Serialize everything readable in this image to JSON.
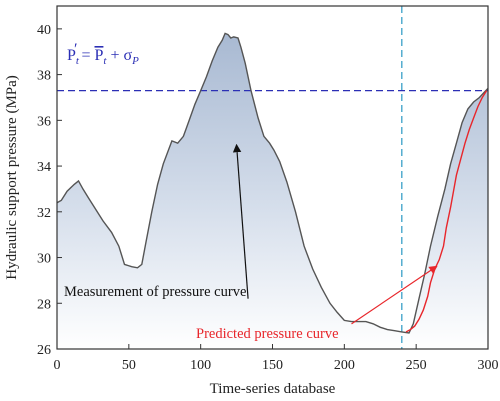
{
  "chart_data": {
    "type": "line",
    "xlabel": "Time-series database",
    "ylabel": "Hydraulic support pressure (MPa)",
    "xlim": [
      0,
      300
    ],
    "ylim": [
      26,
      41
    ],
    "xticks": [
      0,
      50,
      100,
      150,
      200,
      250,
      300
    ],
    "yticks": [
      26,
      28,
      30,
      32,
      34,
      36,
      38,
      40
    ],
    "grid": false,
    "series": [
      {
        "name": "Measurement of pressure curve",
        "color": "#555555",
        "fill": "gradient-blue",
        "points": [
          [
            0,
            32.4
          ],
          [
            3,
            32.5
          ],
          [
            7,
            32.9
          ],
          [
            12,
            33.2
          ],
          [
            15,
            33.35
          ],
          [
            18,
            33.0
          ],
          [
            22,
            32.6
          ],
          [
            27,
            32.1
          ],
          [
            32,
            31.6
          ],
          [
            38,
            31.1
          ],
          [
            43,
            30.5
          ],
          [
            47,
            29.7
          ],
          [
            52,
            29.6
          ],
          [
            56,
            29.55
          ],
          [
            59,
            29.7
          ],
          [
            62,
            30.7
          ],
          [
            66,
            32.0
          ],
          [
            70,
            33.2
          ],
          [
            74,
            34.1
          ],
          [
            80,
            35.1
          ],
          [
            84,
            35.0
          ],
          [
            88,
            35.3
          ],
          [
            92,
            36.0
          ],
          [
            96,
            36.7
          ],
          [
            100,
            37.3
          ],
          [
            104,
            37.9
          ],
          [
            108,
            38.6
          ],
          [
            112,
            39.2
          ],
          [
            115,
            39.5
          ],
          [
            117,
            39.8
          ],
          [
            119,
            39.75
          ],
          [
            121,
            39.6
          ],
          [
            123,
            39.65
          ],
          [
            126,
            39.6
          ],
          [
            128,
            39.2
          ],
          [
            131,
            38.5
          ],
          [
            135,
            37.3
          ],
          [
            140,
            36.1
          ],
          [
            144,
            35.3
          ],
          [
            148,
            35.0
          ],
          [
            151,
            34.7
          ],
          [
            155,
            34.2
          ],
          [
            160,
            33.3
          ],
          [
            166,
            32.0
          ],
          [
            172,
            30.5
          ],
          [
            178,
            29.5
          ],
          [
            184,
            28.7
          ],
          [
            190,
            28.0
          ],
          [
            195,
            27.6
          ],
          [
            200,
            27.25
          ],
          [
            205,
            27.2
          ],
          [
            210,
            27.2
          ],
          [
            215,
            27.2
          ],
          [
            220,
            27.1
          ],
          [
            225,
            26.95
          ],
          [
            230,
            26.85
          ],
          [
            235,
            26.8
          ],
          [
            240,
            26.75
          ],
          [
            245,
            26.7
          ],
          [
            248,
            27.1
          ],
          [
            252,
            28.2
          ],
          [
            256,
            29.3
          ],
          [
            260,
            30.5
          ],
          [
            265,
            31.8
          ],
          [
            270,
            33.0
          ],
          [
            274,
            34.1
          ],
          [
            278,
            35.0
          ],
          [
            282,
            35.9
          ],
          [
            286,
            36.5
          ],
          [
            290,
            36.8
          ],
          [
            294,
            37.0
          ],
          [
            297,
            37.2
          ],
          [
            300,
            37.4
          ]
        ]
      },
      {
        "name": "Predicted pressure curve",
        "color": "#e8262b",
        "points": [
          [
            243,
            26.75
          ],
          [
            246,
            26.85
          ],
          [
            249,
            27.0
          ],
          [
            252,
            27.3
          ],
          [
            255,
            27.7
          ],
          [
            258,
            28.3
          ],
          [
            260,
            28.9
          ],
          [
            263,
            29.5
          ],
          [
            266,
            29.9
          ],
          [
            269,
            30.5
          ],
          [
            271,
            31.3
          ],
          [
            274,
            32.2
          ],
          [
            276,
            32.9
          ],
          [
            278,
            33.6
          ],
          [
            281,
            34.3
          ],
          [
            284,
            35.0
          ],
          [
            287,
            35.6
          ],
          [
            290,
            36.1
          ],
          [
            293,
            36.6
          ],
          [
            296,
            37.0
          ],
          [
            299,
            37.3
          ]
        ]
      }
    ],
    "reference_lines": {
      "horizontal_y": 37.3,
      "horizontal_color": "#2b2fb5",
      "vertical_x": 240,
      "vertical_color": "#3aa0c8"
    },
    "formula": {
      "p_lhs": "P",
      "t_sub": "t",
      "prime": "′",
      "equals": " = ",
      "p_bar": "P",
      "plus": " + σ",
      "p_sub": "P",
      "color": "#2b2fb5"
    },
    "annotations": [
      {
        "text": "Measurement of pressure curve",
        "color": "#111111",
        "arrow_from": [
          133,
          28.2
        ],
        "arrow_to": [
          125,
          34.9
        ]
      },
      {
        "text": "Predicted pressure curve",
        "color": "#e8262b",
        "arrow_from": [
          205,
          27.1
        ],
        "arrow_to": [
          264,
          29.6
        ]
      }
    ]
  }
}
